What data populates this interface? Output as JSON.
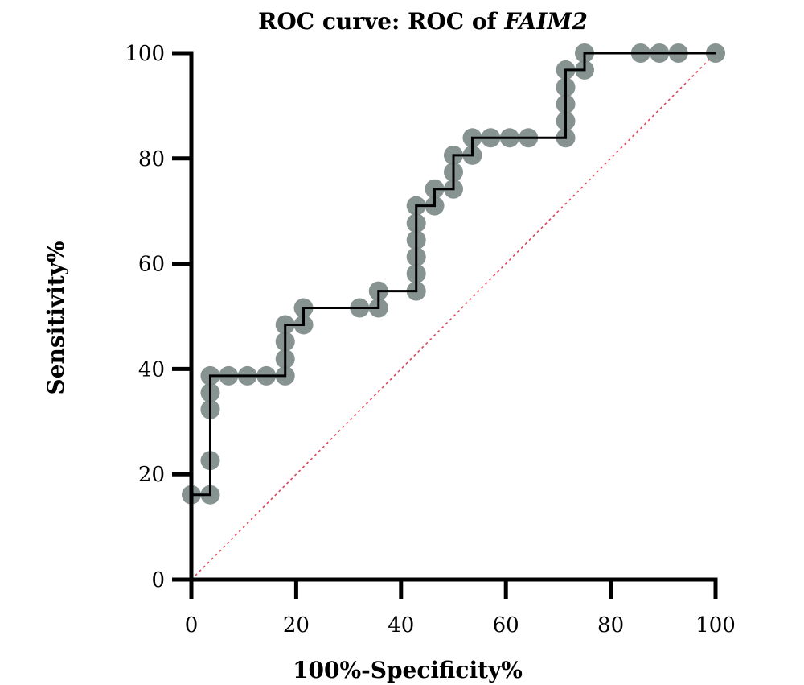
{
  "chart_data": {
    "type": "line",
    "title": "ROC curve: ROC of ",
    "title_italic": "FAIM2",
    "xlabel": "100%-Specificity%",
    "ylabel": "Sensitivity%",
    "xlim": [
      0,
      100
    ],
    "ylim": [
      0,
      100
    ],
    "x_ticks": [
      0,
      20,
      40,
      60,
      80,
      100
    ],
    "y_ticks": [
      0,
      20,
      40,
      60,
      80,
      100
    ],
    "x_tick_labels": [
      "0",
      "20",
      "40",
      "60",
      "80",
      "100"
    ],
    "y_tick_labels": [
      "0",
      "20",
      "40",
      "60",
      "80",
      "100"
    ],
    "grid": false,
    "legend": "none",
    "series": [
      {
        "style": "step-with-markers",
        "color": "#000000",
        "marker_color": "#7d8a88",
        "points": [
          {
            "x": 0,
            "y": 16.1
          },
          {
            "x": 3.6,
            "y": 16.1
          },
          {
            "x": 3.6,
            "y": 22.6
          },
          {
            "x": 3.6,
            "y": 32.3
          },
          {
            "x": 3.6,
            "y": 35.5
          },
          {
            "x": 3.6,
            "y": 38.7
          },
          {
            "x": 7.1,
            "y": 38.7
          },
          {
            "x": 10.7,
            "y": 38.7
          },
          {
            "x": 14.3,
            "y": 38.7
          },
          {
            "x": 17.9,
            "y": 38.7
          },
          {
            "x": 17.9,
            "y": 41.9
          },
          {
            "x": 17.9,
            "y": 45.2
          },
          {
            "x": 17.9,
            "y": 48.4
          },
          {
            "x": 21.4,
            "y": 48.4
          },
          {
            "x": 21.4,
            "y": 51.6
          },
          {
            "x": 32.1,
            "y": 51.6
          },
          {
            "x": 35.7,
            "y": 51.6
          },
          {
            "x": 35.7,
            "y": 54.8
          },
          {
            "x": 42.9,
            "y": 54.8
          },
          {
            "x": 42.9,
            "y": 58.1
          },
          {
            "x": 42.9,
            "y": 61.3
          },
          {
            "x": 42.9,
            "y": 64.5
          },
          {
            "x": 42.9,
            "y": 67.7
          },
          {
            "x": 42.9,
            "y": 71.0
          },
          {
            "x": 46.4,
            "y": 71.0
          },
          {
            "x": 46.4,
            "y": 74.2
          },
          {
            "x": 50.0,
            "y": 74.2
          },
          {
            "x": 50.0,
            "y": 77.4
          },
          {
            "x": 50.0,
            "y": 80.6
          },
          {
            "x": 53.6,
            "y": 80.6
          },
          {
            "x": 53.6,
            "y": 83.9
          },
          {
            "x": 57.1,
            "y": 83.9
          },
          {
            "x": 60.7,
            "y": 83.9
          },
          {
            "x": 64.3,
            "y": 83.9
          },
          {
            "x": 71.4,
            "y": 83.9
          },
          {
            "x": 71.4,
            "y": 87.1
          },
          {
            "x": 71.4,
            "y": 90.3
          },
          {
            "x": 71.4,
            "y": 93.5
          },
          {
            "x": 71.4,
            "y": 96.8
          },
          {
            "x": 75.0,
            "y": 96.8
          },
          {
            "x": 75.0,
            "y": 100
          },
          {
            "x": 85.7,
            "y": 100
          },
          {
            "x": 89.3,
            "y": 100
          },
          {
            "x": 92.9,
            "y": 100
          },
          {
            "x": 100,
            "y": 100
          }
        ]
      },
      {
        "style": "dotted-reference",
        "color": "#e0435a",
        "points": [
          {
            "x": 0,
            "y": 0
          },
          {
            "x": 100,
            "y": 100
          }
        ]
      }
    ]
  }
}
